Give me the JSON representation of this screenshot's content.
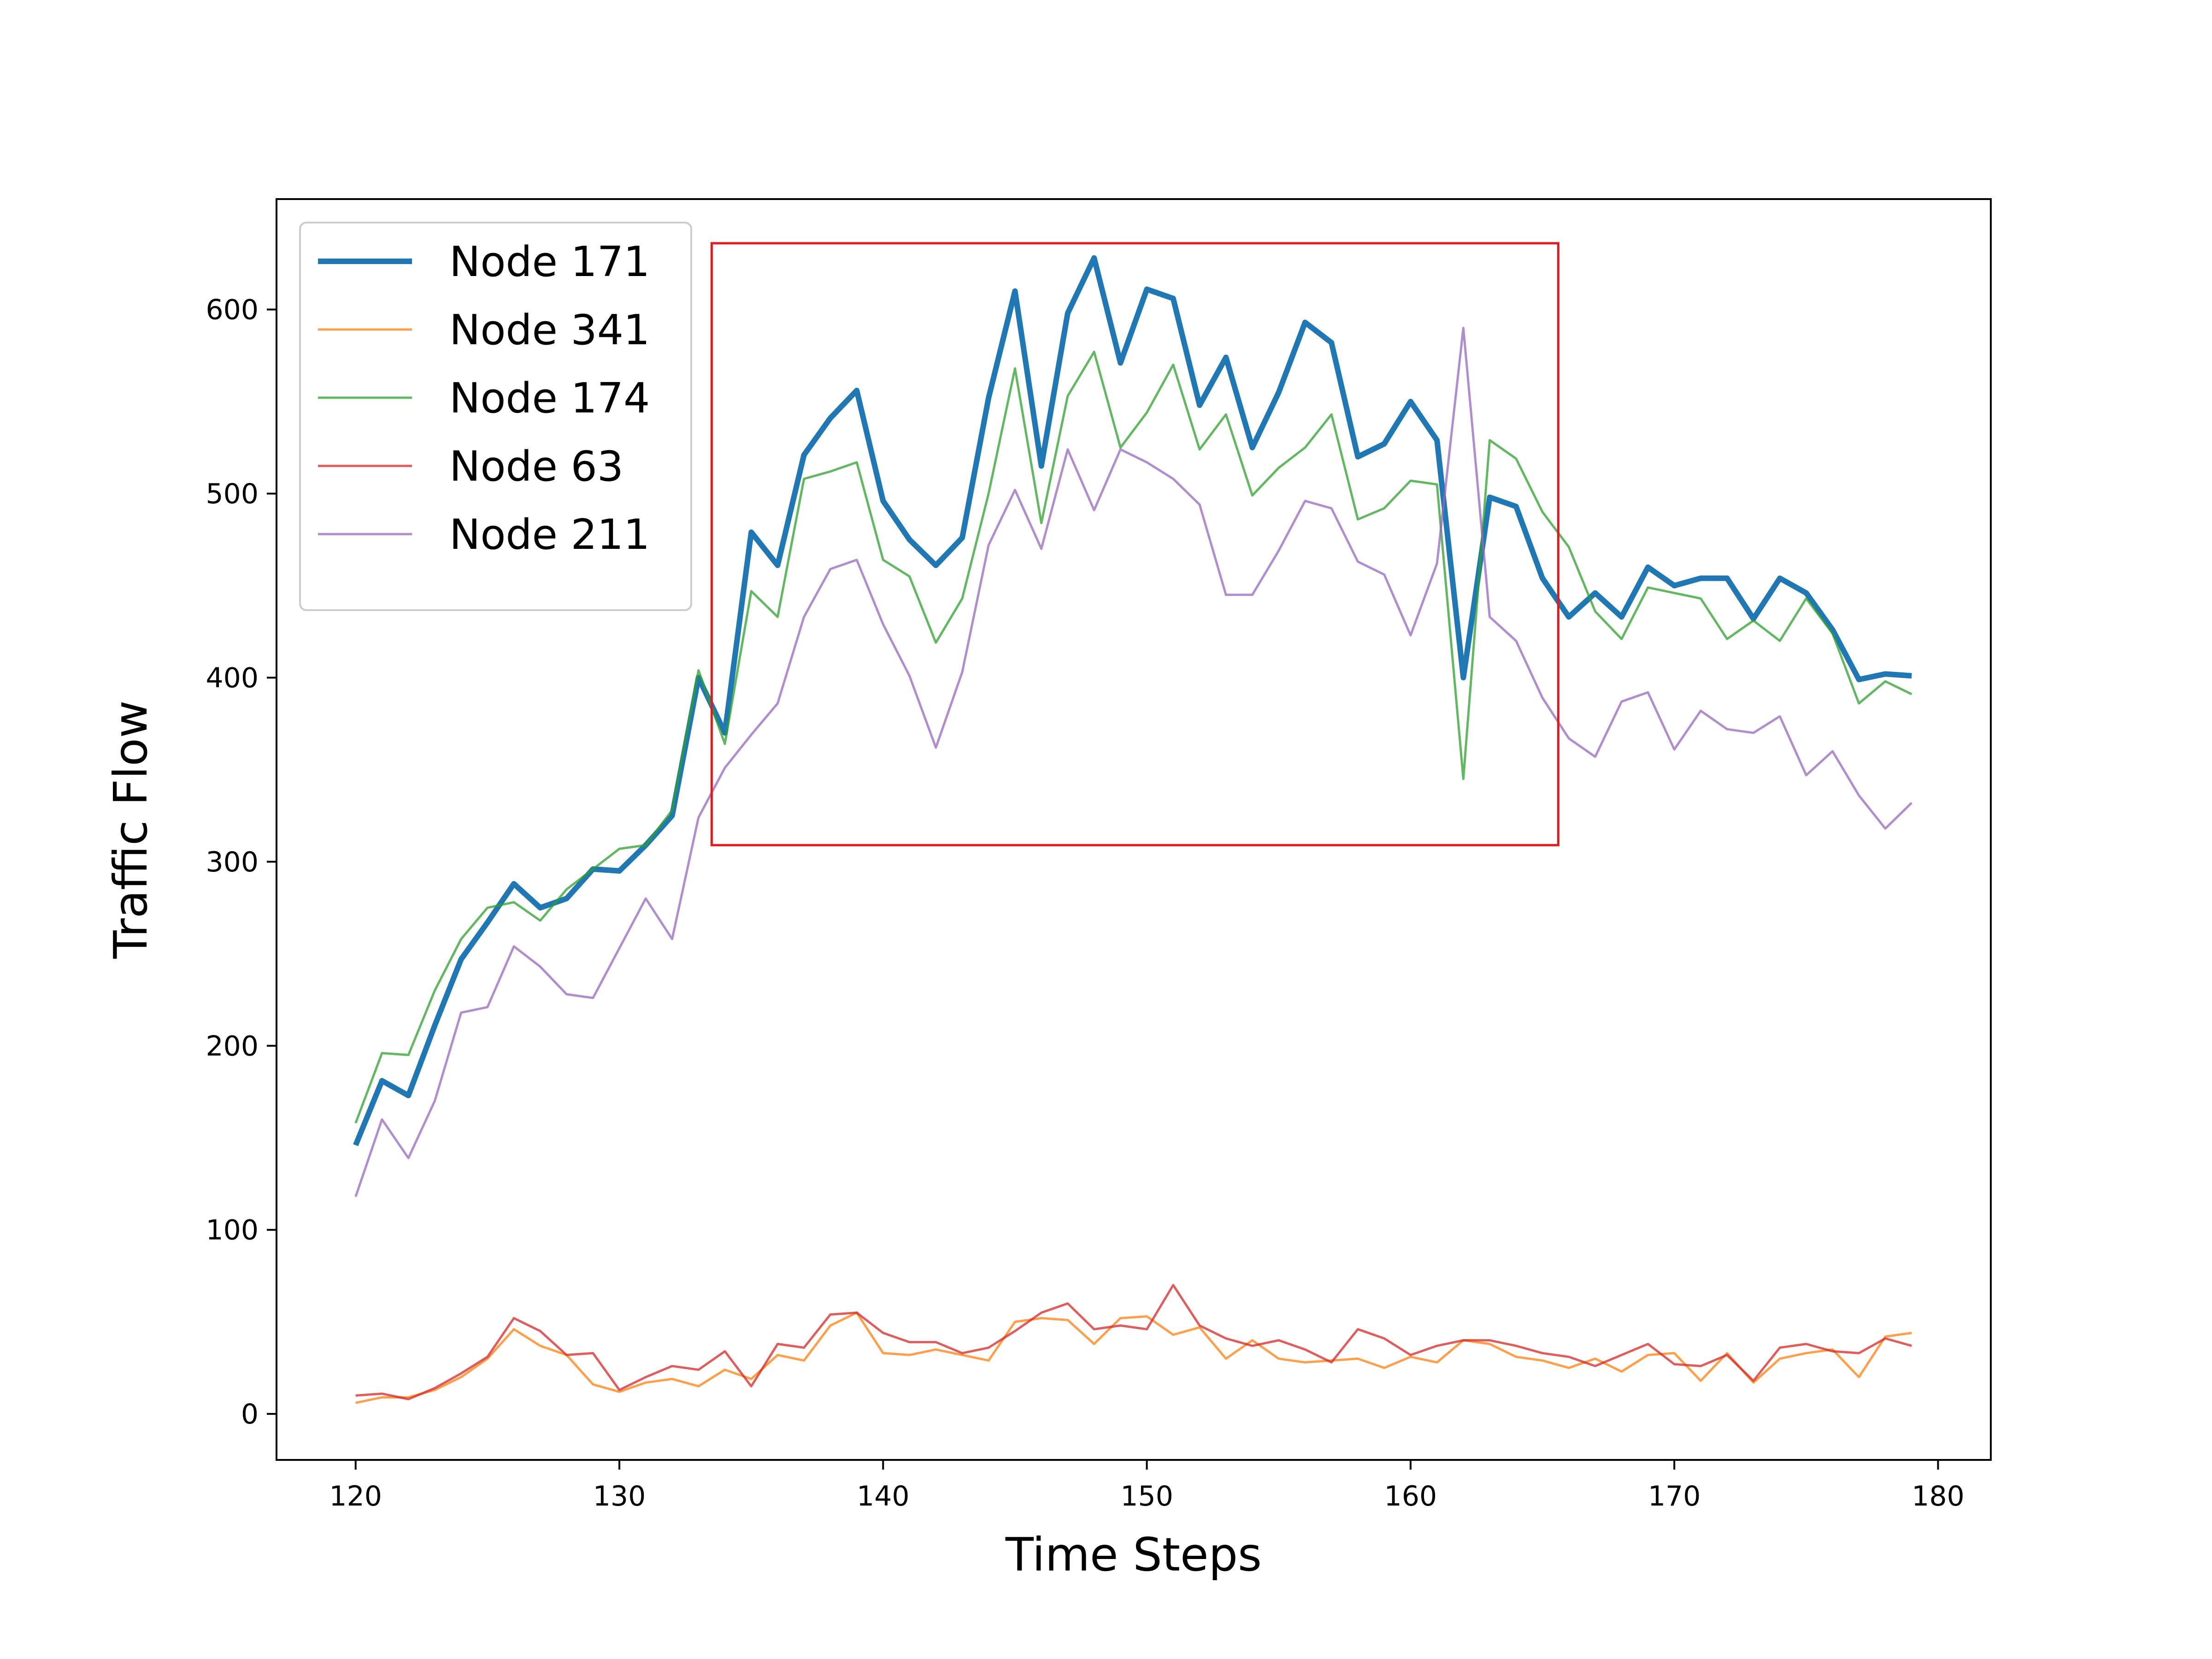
{
  "chart_data": {
    "type": "line",
    "title": "",
    "xlabel": "Time Steps",
    "ylabel": "Traffic Flow",
    "xlim": [
      117,
      182
    ],
    "ylim": [
      -25,
      660
    ],
    "xticks": [
      120,
      130,
      140,
      150,
      160,
      170,
      180
    ],
    "yticks": [
      0,
      100,
      200,
      300,
      400,
      500,
      600
    ],
    "grid": false,
    "legend_position": "top-left",
    "highlight_box": {
      "x": [
        133.5,
        165.6
      ],
      "y": [
        309,
        636
      ],
      "color": "#e31a1c"
    },
    "x": [
      120,
      121,
      122,
      123,
      124,
      125,
      126,
      127,
      128,
      129,
      130,
      131,
      132,
      133,
      134,
      135,
      136,
      137,
      138,
      139,
      140,
      141,
      142,
      143,
      144,
      145,
      146,
      147,
      148,
      149,
      150,
      151,
      152,
      153,
      154,
      155,
      156,
      157,
      158,
      159,
      160,
      161,
      162,
      163,
      164,
      165,
      166,
      167,
      168,
      169,
      170,
      171,
      172,
      173,
      174,
      175,
      176,
      177,
      178,
      179
    ],
    "series": [
      {
        "name": "Node 171",
        "color": "#1f77b4",
        "width": "thick",
        "values": [
          146,
          181,
          173,
          211,
          247,
          267,
          288,
          275,
          280,
          296,
          295,
          309,
          325,
          400,
          370,
          479,
          461,
          521,
          541,
          556,
          496,
          475,
          461,
          476,
          552,
          610,
          515,
          598,
          628,
          571,
          611,
          606,
          548,
          574,
          525,
          555,
          593,
          582,
          520,
          527,
          550,
          529,
          400,
          498,
          493,
          454,
          433,
          446,
          433,
          460,
          450,
          454,
          454,
          432,
          454,
          446,
          426,
          399,
          402,
          401
        ]
      },
      {
        "name": "Node 341",
        "color": "#ff7f0e",
        "width": "thin",
        "values": [
          6,
          9,
          9,
          13,
          20,
          30,
          46,
          37,
          32,
          16,
          12,
          17,
          19,
          15,
          24,
          19,
          32,
          29,
          48,
          55,
          33,
          32,
          35,
          32,
          29,
          50,
          52,
          51,
          38,
          52,
          53,
          43,
          47,
          30,
          40,
          30,
          28,
          29,
          30,
          25,
          31,
          28,
          40,
          38,
          31,
          29,
          25,
          30,
          23,
          32,
          33,
          18,
          33,
          17,
          30,
          33,
          35,
          20,
          42,
          44
        ]
      },
      {
        "name": "Node 174",
        "color": "#2ca02c",
        "width": "thin",
        "values": [
          158,
          196,
          195,
          230,
          258,
          275,
          278,
          268,
          285,
          296,
          307,
          309,
          328,
          404,
          364,
          447,
          433,
          508,
          512,
          517,
          464,
          455,
          419,
          443,
          500,
          568,
          484,
          553,
          577,
          525,
          544,
          570,
          524,
          543,
          499,
          514,
          525,
          543,
          486,
          492,
          507,
          505,
          345,
          529,
          519,
          490,
          471,
          436,
          421,
          449,
          446,
          443,
          421,
          431,
          420,
          443,
          424,
          386,
          398,
          391
        ]
      },
      {
        "name": "Node 63",
        "color": "#d62728",
        "width": "thin",
        "values": [
          10,
          11,
          8,
          14,
          22,
          31,
          52,
          45,
          32,
          33,
          13,
          20,
          26,
          24,
          34,
          15,
          38,
          36,
          54,
          55,
          44,
          39,
          39,
          33,
          36,
          45,
          55,
          60,
          46,
          48,
          46,
          70,
          48,
          41,
          37,
          40,
          35,
          28,
          46,
          41,
          32,
          37,
          40,
          40,
          37,
          33,
          31,
          26,
          32,
          38,
          27,
          26,
          32,
          18,
          36,
          38,
          34,
          33,
          41,
          37
        ]
      },
      {
        "name": "Node 211",
        "color": "#9467bd",
        "width": "thin",
        "values": [
          118,
          160,
          139,
          170,
          218,
          221,
          254,
          243,
          228,
          226,
          253,
          280,
          258,
          324,
          351,
          369,
          386,
          433,
          459,
          464,
          429,
          401,
          362,
          403,
          472,
          502,
          470,
          524,
          491,
          524,
          517,
          508,
          494,
          445,
          445,
          469,
          496,
          492,
          463,
          456,
          423,
          462,
          590,
          433,
          420,
          389,
          367,
          357,
          387,
          392,
          361,
          382,
          372,
          370,
          379,
          347,
          360,
          336,
          318,
          332
        ]
      }
    ]
  }
}
